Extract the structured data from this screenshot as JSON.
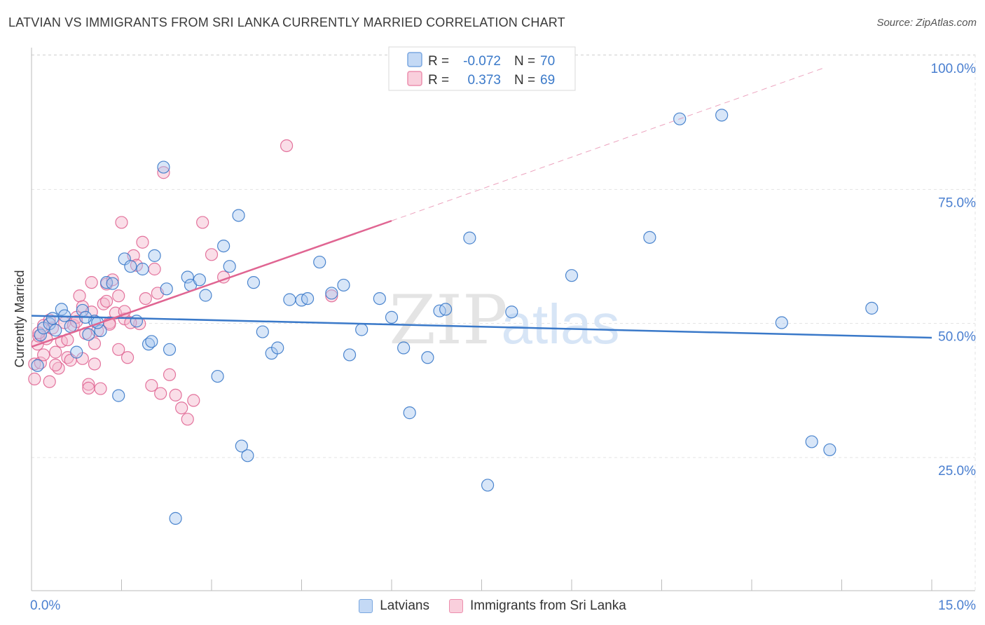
{
  "title": "LATVIAN VS IMMIGRANTS FROM SRI LANKA CURRENTLY MARRIED CORRELATION CHART",
  "source": "Source: ZipAtlas.com",
  "watermark": {
    "zip": "ZIP",
    "atlas": "atlas"
  },
  "legend_top": [
    {
      "r_label": "R =",
      "r_value": "-0.072",
      "n_label": "N =",
      "n_value": "70"
    },
    {
      "r_label": "R =",
      "r_value": "0.373",
      "n_label": "N =",
      "n_value": "69"
    }
  ],
  "chart_data": {
    "type": "scatter",
    "title": "LATVIAN VS IMMIGRANTS FROM SRI LANKA CURRENTLY MARRIED CORRELATION CHART",
    "xlabel": "",
    "ylabel": "Currently Married",
    "xlim": [
      0,
      15
    ],
    "ylim": [
      0,
      104
    ],
    "x_tick_labels": [
      "0.0%",
      "15.0%"
    ],
    "y_ticks": [
      25,
      50,
      75,
      100
    ],
    "y_tick_labels": [
      "25.0%",
      "50.0%",
      "75.0%",
      "100.0%"
    ],
    "grid": true,
    "legend_position": "bottom",
    "colors": {
      "blue": "#3a79c9",
      "blue_fill": "#a9c8f0",
      "pink": "#e06592",
      "pink_fill": "#f5b6cb",
      "tick_label": "#4a7fd0"
    },
    "series": [
      {
        "name": "Latvians",
        "color": "#3a79c9",
        "trend": {
          "x0": 0.0,
          "y0": 53.8,
          "x1": 15.0,
          "y1": 49.7
        },
        "points": [
          [
            0.1,
            44.5
          ],
          [
            0.15,
            50.2
          ],
          [
            0.2,
            51.5
          ],
          [
            0.3,
            52.3
          ],
          [
            0.4,
            51.1
          ],
          [
            0.5,
            55.0
          ],
          [
            0.55,
            53.8
          ],
          [
            0.65,
            51.8
          ],
          [
            0.75,
            47.0
          ],
          [
            0.85,
            54.8
          ],
          [
            0.95,
            50.3
          ],
          [
            1.05,
            52.8
          ],
          [
            1.15,
            51.0
          ],
          [
            1.25,
            60.0
          ],
          [
            1.35,
            59.8
          ],
          [
            1.45,
            38.9
          ],
          [
            1.55,
            64.4
          ],
          [
            1.65,
            63.0
          ],
          [
            1.75,
            52.8
          ],
          [
            1.85,
            62.5
          ],
          [
            1.95,
            48.5
          ],
          [
            2.0,
            49.0
          ],
          [
            2.05,
            65.0
          ],
          [
            2.2,
            81.5
          ],
          [
            2.25,
            58.8
          ],
          [
            2.3,
            47.5
          ],
          [
            2.4,
            16.0
          ],
          [
            2.6,
            61.0
          ],
          [
            2.65,
            59.5
          ],
          [
            2.8,
            60.5
          ],
          [
            2.9,
            57.6
          ],
          [
            3.1,
            42.5
          ],
          [
            3.2,
            66.8
          ],
          [
            3.3,
            63.0
          ],
          [
            3.5,
            29.5
          ],
          [
            3.6,
            27.7
          ],
          [
            3.7,
            60.0
          ],
          [
            3.85,
            50.8
          ],
          [
            4.0,
            46.8
          ],
          [
            4.1,
            47.8
          ],
          [
            4.3,
            56.8
          ],
          [
            4.5,
            56.7
          ],
          [
            4.6,
            57.0
          ],
          [
            4.8,
            63.8
          ],
          [
            5.0,
            58.0
          ],
          [
            5.2,
            59.5
          ],
          [
            5.3,
            46.5
          ],
          [
            5.5,
            51.2
          ],
          [
            5.8,
            57.0
          ],
          [
            6.0,
            53.5
          ],
          [
            6.2,
            47.8
          ],
          [
            6.3,
            35.7
          ],
          [
            6.6,
            46.0
          ],
          [
            6.8,
            54.7
          ],
          [
            6.9,
            55.0
          ],
          [
            7.3,
            68.3
          ],
          [
            7.6,
            22.2
          ],
          [
            8.0,
            54.5
          ],
          [
            9.0,
            61.3
          ],
          [
            10.3,
            68.4
          ],
          [
            10.8,
            90.5
          ],
          [
            11.5,
            91.2
          ],
          [
            12.5,
            52.5
          ],
          [
            13.0,
            30.3
          ],
          [
            13.3,
            28.8
          ],
          [
            14.0,
            55.2
          ],
          [
            0.35,
            53.3
          ],
          [
            0.9,
            53.5
          ],
          [
            1.1,
            52.5
          ],
          [
            3.45,
            72.5
          ]
        ]
      },
      {
        "name": "Immigrants from Sri Lanka",
        "color": "#e06592",
        "trend": {
          "x0": 0.0,
          "y0": 48.0,
          "x1": 6.0,
          "y1": 71.5,
          "dash_to": {
            "x": 13.2,
            "y": 100.0
          }
        },
        "points": [
          [
            0.05,
            44.8
          ],
          [
            0.05,
            42.0
          ],
          [
            0.1,
            48.5
          ],
          [
            0.12,
            50.0
          ],
          [
            0.15,
            45.0
          ],
          [
            0.2,
            52.0
          ],
          [
            0.25,
            49.5
          ],
          [
            0.3,
            53.0
          ],
          [
            0.35,
            51.5
          ],
          [
            0.4,
            47.0
          ],
          [
            0.45,
            44.0
          ],
          [
            0.5,
            49.0
          ],
          [
            0.55,
            52.5
          ],
          [
            0.6,
            46.0
          ],
          [
            0.65,
            45.5
          ],
          [
            0.7,
            52.0
          ],
          [
            0.75,
            53.5
          ],
          [
            0.8,
            57.5
          ],
          [
            0.85,
            55.5
          ],
          [
            0.9,
            50.5
          ],
          [
            0.95,
            41.0
          ],
          [
            1.0,
            54.5
          ],
          [
            1.05,
            44.8
          ],
          [
            1.1,
            51.0
          ],
          [
            1.15,
            40.2
          ],
          [
            1.2,
            56.0
          ],
          [
            1.25,
            59.7
          ],
          [
            1.3,
            52.5
          ],
          [
            1.35,
            60.5
          ],
          [
            1.4,
            54.3
          ],
          [
            1.45,
            57.5
          ],
          [
            1.5,
            71.2
          ],
          [
            1.55,
            53.2
          ],
          [
            1.6,
            46.0
          ],
          [
            1.7,
            65.0
          ],
          [
            1.75,
            63.2
          ],
          [
            1.8,
            52.3
          ],
          [
            1.85,
            67.5
          ],
          [
            1.9,
            57.0
          ],
          [
            2.0,
            40.8
          ],
          [
            2.05,
            62.5
          ],
          [
            2.1,
            58.0
          ],
          [
            2.2,
            80.5
          ],
          [
            2.3,
            42.8
          ],
          [
            2.4,
            39.0
          ],
          [
            2.5,
            36.6
          ],
          [
            2.6,
            34.5
          ],
          [
            2.7,
            38.0
          ],
          [
            2.85,
            71.2
          ],
          [
            3.0,
            65.2
          ],
          [
            3.2,
            61.0
          ],
          [
            4.25,
            85.5
          ],
          [
            5.0,
            57.5
          ],
          [
            1.0,
            60.0
          ],
          [
            1.25,
            56.5
          ],
          [
            0.95,
            40.3
          ],
          [
            1.45,
            47.5
          ],
          [
            1.65,
            52.5
          ],
          [
            2.15,
            39.3
          ],
          [
            0.2,
            46.5
          ],
          [
            0.4,
            44.6
          ],
          [
            0.6,
            49.3
          ],
          [
            0.75,
            52.7
          ],
          [
            0.85,
            45.8
          ],
          [
            1.05,
            48.6
          ],
          [
            1.3,
            52.2
          ],
          [
            1.55,
            54.6
          ],
          [
            0.3,
            41.5
          ],
          [
            0.12,
            50.6
          ]
        ]
      }
    ]
  }
}
